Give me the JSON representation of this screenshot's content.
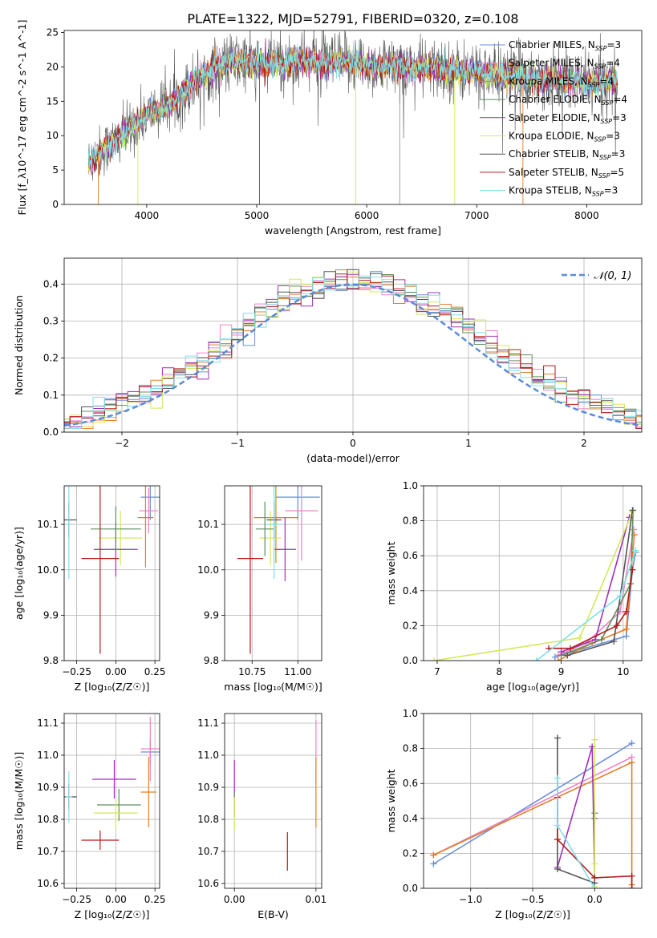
{
  "figure": {
    "title": "PLATE=1322, MJD=52791, FIBERID=0320, z=0.108"
  },
  "models": [
    {
      "label": "Chabrier MILES, N_SSP=3",
      "color": "#6a8fd8"
    },
    {
      "label": "Salpeter MILES, N_SSP=4",
      "color": "#ee82c4"
    },
    {
      "label": "Kroupa MILES, N_SSP=4",
      "color": "#e07f2a"
    },
    {
      "label": "Chabrier ELODIE, N_SSP=4",
      "color": "#5f8f5f"
    },
    {
      "label": "Salpeter ELODIE, N_SSP=3",
      "color": "#9e32b4"
    },
    {
      "label": "Kroupa ELODIE, N_SSP=3",
      "color": "#d4e85a"
    },
    {
      "label": "Chabrier STELIB, N_SSP=3",
      "color": "#555555"
    },
    {
      "label": "Salpeter STELIB, N_SSP=5",
      "color": "#b81a1a"
    },
    {
      "label": "Kroupa STELIB, N_SSP=3",
      "color": "#7fe0e8"
    }
  ],
  "chart_data": [
    {
      "id": "spectrum",
      "type": "line",
      "xlabel": "wavelength [Angstrom, rest frame]",
      "ylabel": "Flux [f_λ10^-17 erg cm^-2 s^-1 A^-1]",
      "xlim": [
        3250,
        8500
      ],
      "ylim": [
        0,
        25.3
      ],
      "xticks": [
        4000,
        5000,
        6000,
        7000,
        8000
      ],
      "yticks": [
        0,
        5,
        10,
        15,
        20,
        25
      ],
      "grid": false,
      "legend": "top-right",
      "series": [
        {
          "name": "Chabrier STELIB, N_SSP=3",
          "x": [
            3470,
            3550,
            3650,
            3750,
            3850,
            3950,
            4050,
            4150,
            4250,
            4350,
            4450,
            4550,
            4650,
            4750,
            4850,
            4950,
            5050,
            5150,
            5250,
            5350,
            5450,
            5550,
            5650,
            5750,
            5850,
            5950,
            6050,
            6150,
            6250,
            6350,
            6450,
            6550,
            6650,
            6750,
            6850,
            6950,
            7050,
            7150,
            7250,
            7350,
            7450,
            7550,
            7650,
            7750,
            7850,
            7950,
            8050,
            8150,
            8250
          ],
          "y": [
            6.0,
            7.2,
            8.5,
            9.5,
            11.0,
            12.5,
            13.5,
            14.2,
            15.0,
            16.5,
            18.0,
            19.2,
            20.0,
            20.5,
            20.8,
            20.5,
            20.2,
            20.6,
            20.4,
            20.8,
            20.9,
            20.7,
            20.5,
            20.6,
            20.8,
            20.4,
            20.2,
            20.0,
            20.3,
            20.1,
            19.8,
            19.6,
            19.8,
            19.5,
            19.4,
            19.2,
            19.0,
            18.9,
            18.8,
            18.6,
            18.4,
            18.2,
            18.0,
            18.1,
            17.9,
            17.8,
            17.7,
            17.8,
            18.0
          ]
        }
      ]
    },
    {
      "id": "residuals",
      "type": "line",
      "xlabel": "(data-model)/error",
      "ylabel": "Normed distribution",
      "xlim": [
        -2.5,
        2.5
      ],
      "ylim": [
        0,
        0.47
      ],
      "xticks": [
        -2,
        -1,
        0,
        1,
        2
      ],
      "yticks": [
        0.0,
        0.1,
        0.2,
        0.3,
        0.4
      ],
      "grid": true,
      "legend": "top-right",
      "legend_label": "𝒩(0, 1)",
      "series": [
        {
          "name": "𝒩(0, 1)",
          "mu": 0,
          "sigma": 1
        }
      ],
      "hist_bin_width": 0.1
    },
    {
      "id": "age-vs-Z",
      "type": "scatter",
      "xlabel": "Z [log₁₀(Z/Z☉)]",
      "ylabel": "age  [log₁₀(age/yr)]",
      "xlim": [
        -0.33,
        0.28
      ],
      "ylim": [
        9.8,
        10.185
      ],
      "xticks": [
        -0.25,
        0.0,
        0.25
      ],
      "yticks": [
        9.8,
        9.9,
        10.0,
        10.1
      ],
      "grid": true,
      "points": [
        {
          "x": 0.22,
          "y": 10.16,
          "xerr": 0.06,
          "yerr": 0.05
        },
        {
          "x": 0.21,
          "y": 10.13,
          "xerr": 0.06,
          "yerr": 0.05
        },
        {
          "x": 0.19,
          "y": 10.115,
          "xerr": 0.05,
          "yerr": 0.11
        },
        {
          "x": 0.03,
          "y": 10.07,
          "xerr": 0.14,
          "yerr": 0.06
        },
        {
          "x": 0.0,
          "y": 10.045,
          "xerr": 0.14,
          "yerr": 0.06
        },
        {
          "x": 0.0,
          "y": 10.09,
          "xerr": 0.16,
          "yerr": 0.05
        },
        {
          "x": -0.3,
          "y": 10.11,
          "xerr": 0.05,
          "yerr": 0.04
        },
        {
          "x": -0.1,
          "y": 10.025,
          "xerr": 0.12,
          "yerr": 0.21
        },
        {
          "x": -0.3,
          "y": 10.1,
          "xerr": 0.02,
          "yerr": 0.12
        }
      ]
    },
    {
      "id": "age-vs-mass",
      "type": "scatter",
      "xlabel": "mass [log₁₀(M/M☉)]",
      "ylabel": "",
      "xlim": [
        10.6,
        11.13
      ],
      "ylim": [
        9.8,
        10.185
      ],
      "xticks": [
        10.75,
        11.0
      ],
      "yticks": [
        9.8,
        9.9,
        10.0,
        10.1
      ],
      "grid": true,
      "points": [
        {
          "x": 11.0,
          "y": 10.16,
          "xerr": 0.12,
          "yerr": 0.05
        },
        {
          "x": 11.02,
          "y": 10.13,
          "xerr": 0.09,
          "yerr": 0.11
        },
        {
          "x": 10.88,
          "y": 10.115,
          "xerr": 0.12,
          "yerr": 0.1
        },
        {
          "x": 10.85,
          "y": 10.07,
          "xerr": 0.06,
          "yerr": 0.06
        },
        {
          "x": 10.93,
          "y": 10.045,
          "xerr": 0.06,
          "yerr": 0.07
        },
        {
          "x": 10.82,
          "y": 10.09,
          "xerr": 0.05,
          "yerr": 0.06
        },
        {
          "x": 10.87,
          "y": 10.11,
          "xerr": 0.04,
          "yerr": 0.04
        },
        {
          "x": 10.74,
          "y": 10.025,
          "xerr": 0.07,
          "yerr": 0.21
        },
        {
          "x": 10.87,
          "y": 10.1,
          "xerr": 0.04,
          "yerr": 0.12
        }
      ]
    },
    {
      "id": "massweight-vs-age",
      "type": "line",
      "xlabel": "age  [log₁₀(age/yr)]",
      "ylabel": "mass weight",
      "xlim": [
        6.78,
        10.3
      ],
      "ylim": [
        0,
        1
      ],
      "xticks": [
        7,
        8,
        9,
        10
      ],
      "yticks": [
        0.0,
        0.2,
        0.4,
        0.6,
        0.8,
        1.0
      ],
      "grid": true,
      "series": [
        {
          "x": [
            8.9,
            10.05,
            10.15,
            10.2
          ],
          "y": [
            0.02,
            0.14,
            0.52,
            0.62
          ]
        },
        {
          "x": [
            8.95,
            9.4,
            9.95,
            10.17
          ],
          "y": [
            0.03,
            0.1,
            0.28,
            0.75
          ]
        },
        {
          "x": [
            8.95,
            9.5,
            10.05,
            10.18
          ],
          "y": [
            0.0,
            0.1,
            0.18,
            0.72
          ]
        },
        {
          "x": [
            9.0,
            9.65,
            10.12,
            10.16
          ],
          "y": [
            0.03,
            0.12,
            0.44,
            0.86
          ]
        },
        {
          "x": [
            9.0,
            9.55,
            10.1
          ],
          "y": [
            0.05,
            0.12,
            0.82
          ]
        },
        {
          "x": [
            6.95,
            9.3,
            10.15
          ],
          "y": [
            0.0,
            0.13,
            0.85
          ]
        },
        {
          "x": [
            9.1,
            9.85,
            10.15
          ],
          "y": [
            0.03,
            0.11,
            0.86
          ]
        },
        {
          "x": [
            8.8,
            9.15,
            9.9,
            10.05,
            10.15
          ],
          "y": [
            0.07,
            0.07,
            0.2,
            0.28,
            0.52
          ]
        },
        {
          "x": [
            8.6,
            9.95,
            10.2
          ],
          "y": [
            0.0,
            0.37,
            0.63
          ]
        }
      ]
    },
    {
      "id": "mass-vs-Z",
      "type": "scatter",
      "xlabel": "Z [log₁₀(Z/Z☉)]",
      "ylabel": "mass [log₁₀(M/M☉)]",
      "xlim": [
        -0.33,
        0.28
      ],
      "ylim": [
        10.585,
        11.13
      ],
      "xticks": [
        -0.25,
        0.0,
        0.25
      ],
      "yticks": [
        10.6,
        10.7,
        10.8,
        10.9,
        11.0,
        11.1
      ],
      "grid": true,
      "points": [
        {
          "x": 0.22,
          "y": 11.01,
          "xerr": 0.06,
          "yerr": 0.04
        },
        {
          "x": 0.22,
          "y": 11.02,
          "xerr": 0.06,
          "yerr": 0.1
        },
        {
          "x": 0.21,
          "y": 10.885,
          "xerr": 0.05,
          "yerr": 0.11
        },
        {
          "x": 0.02,
          "y": 10.845,
          "xerr": 0.14,
          "yerr": 0.05
        },
        {
          "x": -0.01,
          "y": 10.925,
          "xerr": 0.14,
          "yerr": 0.06
        },
        {
          "x": 0.0,
          "y": 10.82,
          "xerr": 0.14,
          "yerr": 0.05
        },
        {
          "x": -0.3,
          "y": 10.87,
          "xerr": 0.05,
          "yerr": 0.04
        },
        {
          "x": -0.1,
          "y": 10.735,
          "xerr": 0.12,
          "yerr": 0.03
        },
        {
          "x": -0.3,
          "y": 10.87,
          "xerr": 0.02,
          "yerr": 0.08
        }
      ]
    },
    {
      "id": "mass-vs-ebv",
      "type": "scatter",
      "xlabel": "E(B-V)",
      "ylabel": "",
      "xlim": [
        -0.0012,
        0.0107
      ],
      "ylim": [
        10.585,
        11.13
      ],
      "xticks": [
        0.0,
        0.01
      ],
      "xticklabels": [
        "0.00",
        "0.01"
      ],
      "yticks": [
        10.6,
        10.7,
        10.8,
        10.9,
        11.0,
        11.1
      ],
      "grid": true,
      "points": [
        {
          "x": 0.01,
          "y": 11.01,
          "xerr": 0,
          "yerr": 0.1
        },
        {
          "x": 0.01,
          "y": 10.885,
          "xerr": 0,
          "yerr": 0.11
        },
        {
          "x": 0.0,
          "y": 10.925,
          "xerr": 0,
          "yerr": 0.06
        },
        {
          "x": 0.0,
          "y": 10.845,
          "xerr": 0,
          "yerr": 0.04
        },
        {
          "x": 0.0,
          "y": 10.82,
          "xerr": 0,
          "yerr": 0.05
        },
        {
          "x": 0.0065,
          "y": 10.7,
          "xerr": 0,
          "yerr": 0.06
        }
      ]
    },
    {
      "id": "massweight-vs-Z",
      "type": "line",
      "xlabel": "Z [log₁₀(Z/Z☉)]",
      "ylabel": "mass weight",
      "xlim": [
        -1.38,
        0.38
      ],
      "ylim": [
        0,
        1
      ],
      "xticks": [
        -1.0,
        -0.5,
        0.0
      ],
      "yticks": [
        0.0,
        0.2,
        0.4,
        0.6,
        0.8,
        1.0
      ],
      "grid": true,
      "series": [
        {
          "x": [
            -1.3,
            0.3
          ],
          "y": [
            0.14,
            0.83
          ]
        },
        {
          "x": [
            -1.3,
            0.3
          ],
          "y": [
            0.19,
            0.75
          ]
        },
        {
          "x": [
            -1.3,
            0.3,
            0.3
          ],
          "y": [
            0.19,
            0.72,
            0.02
          ]
        },
        {
          "x": [
            0.0,
            0.0
          ],
          "y": [
            0.43,
            0.4
          ]
        },
        {
          "x": [
            -0.3,
            -0.02,
            0.0
          ],
          "y": [
            0.12,
            0.81,
            0.06
          ]
        },
        {
          "x": [
            0.0,
            0.0,
            0.0
          ],
          "y": [
            0.85,
            0.14,
            0.01
          ]
        },
        {
          "x": [
            -0.3,
            -0.3,
            0.0
          ],
          "y": [
            0.86,
            0.11,
            0.03
          ]
        },
        {
          "x": [
            -0.3,
            -0.3,
            0.0,
            0.3,
            0.3
          ],
          "y": [
            0.52,
            0.28,
            0.06,
            0.07,
            0.0
          ]
        },
        {
          "x": [
            -0.3,
            -0.3,
            0.0
          ],
          "y": [
            0.63,
            0.36,
            0.0
          ]
        }
      ]
    }
  ]
}
